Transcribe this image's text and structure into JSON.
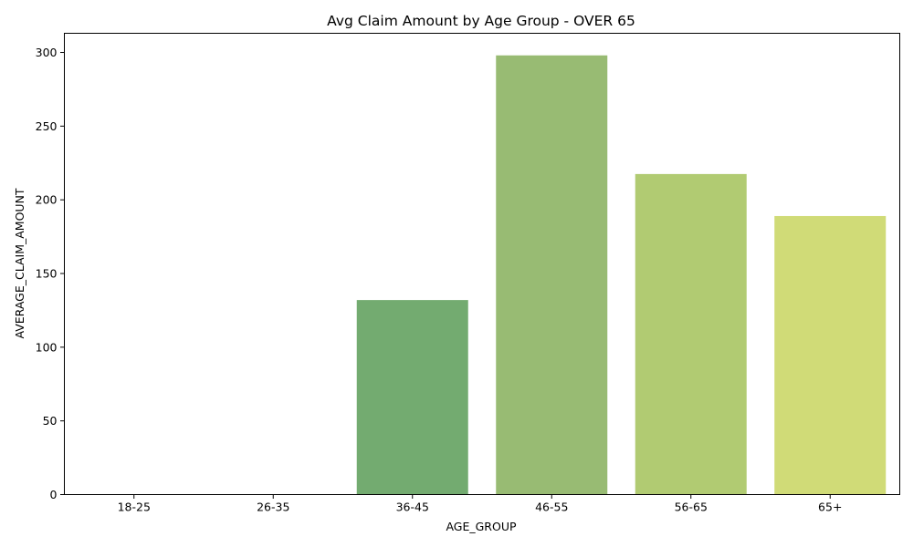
{
  "chart_data": {
    "type": "bar",
    "title": "Avg Claim Amount by Age Group - OVER 65",
    "xlabel": "AGE_GROUP",
    "ylabel": "AVERAGE_CLAIM_AMOUNT",
    "categories": [
      "18-25",
      "26-35",
      "36-45",
      "46-55",
      "56-65",
      "65+"
    ],
    "values": [
      0,
      0,
      132,
      298,
      217.5,
      189
    ],
    "ylim": [
      0,
      313
    ],
    "yticks": [
      0,
      50,
      100,
      150,
      200,
      250,
      300
    ],
    "grid": false,
    "colors": [
      "#4b9e5e",
      "#5aa564",
      "#73ab70",
      "#98bb73",
      "#b1cb72",
      "#d0db77"
    ]
  }
}
